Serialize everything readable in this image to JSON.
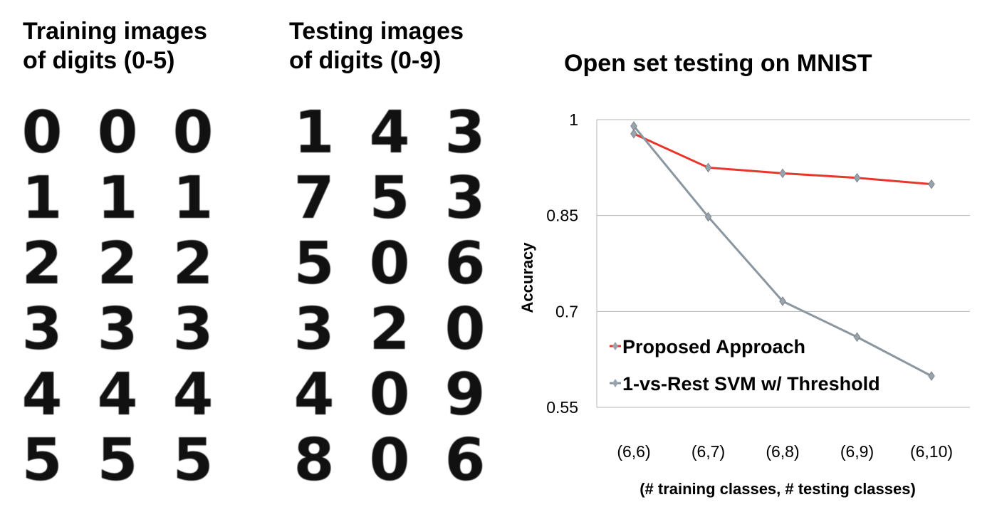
{
  "training_panel": {
    "title_line1": "Training images",
    "title_line2": "of digits (0-5)",
    "digits": [
      "0",
      "0",
      "0",
      "1",
      "1",
      "1",
      "2",
      "2",
      "2",
      "3",
      "3",
      "3",
      "4",
      "4",
      "4",
      "5",
      "5",
      "5"
    ]
  },
  "testing_panel": {
    "title_line1": "Testing images",
    "title_line2": "of digits (0-9)",
    "digits": [
      "1",
      "4",
      "3",
      "7",
      "5",
      "3",
      "5",
      "0",
      "6",
      "3",
      "2",
      "0",
      "4",
      "0",
      "9",
      "8",
      "0",
      "6"
    ]
  },
  "chart_data": {
    "type": "line",
    "title": "Open set testing on MNIST",
    "xlabel": "(# training classes, # testing classes)",
    "ylabel": "Accuracy",
    "categories": [
      "(6,6)",
      "(6,7)",
      "(6,8)",
      "(6,9)",
      "(6,10)"
    ],
    "yticks": [
      "1",
      "0.85",
      "0.7",
      "0.55"
    ],
    "ylim": [
      0.55,
      1.0
    ],
    "grid": true,
    "legend_position": "bottom-left",
    "series": [
      {
        "name": "Proposed Approach",
        "color": "#e8372a",
        "values": [
          0.978,
          0.925,
          0.916,
          0.909,
          0.899
        ]
      },
      {
        "name": "1-vs-Rest SVM w/ Threshold",
        "color": "#8a96a0",
        "values": [
          0.99,
          0.848,
          0.716,
          0.66,
          0.599
        ]
      }
    ]
  }
}
